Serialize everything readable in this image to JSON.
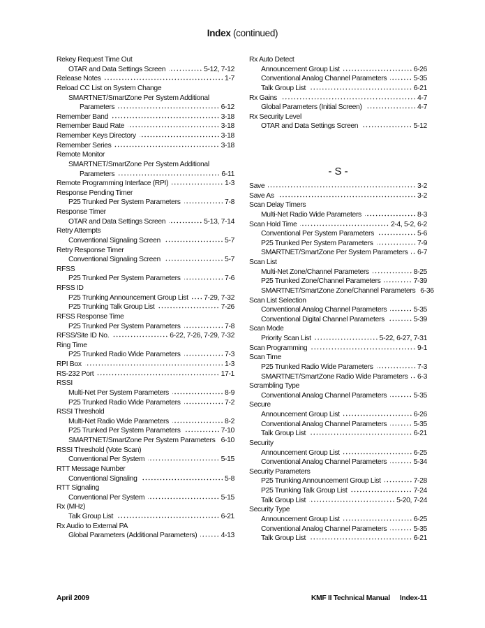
{
  "header": {
    "title": "Index",
    "suffix": "(continued)"
  },
  "left_column": [
    {
      "text": "Rekey Request Time Out",
      "pages": "",
      "level": 0
    },
    {
      "text": "OTAR and Data Settings Screen",
      "pages": "5-12, 7-12",
      "level": 1
    },
    {
      "text": "Release Notes",
      "pages": "1-7",
      "level": 0
    },
    {
      "text": "Reload CC List on System Change",
      "pages": "",
      "level": 0
    },
    {
      "text": "SMARTNET/SmartZone Per System Additional",
      "pages": "",
      "level": 1
    },
    {
      "text": "Parameters",
      "pages": "6-12",
      "level": 2
    },
    {
      "text": "Remember Band",
      "pages": "3-18",
      "level": 0
    },
    {
      "text": "Remember Baud Rate",
      "pages": "3-18",
      "level": 0
    },
    {
      "text": "Remember Keys Directory",
      "pages": "3-18",
      "level": 0
    },
    {
      "text": "Remember Series",
      "pages": "3-18",
      "level": 0
    },
    {
      "text": "Remote Monitor",
      "pages": "",
      "level": 0
    },
    {
      "text": "SMARTNET/SmartZone Per System Additional",
      "pages": "",
      "level": 1
    },
    {
      "text": "Parameters",
      "pages": "6-11",
      "level": 2
    },
    {
      "text": "Remote Programming Interface (RPI)",
      "pages": "1-3",
      "level": 0
    },
    {
      "text": "Response Pending Timer",
      "pages": "",
      "level": 0
    },
    {
      "text": "P25 Trunked Per System Parameters",
      "pages": "7-8",
      "level": 1
    },
    {
      "text": "Response Timer",
      "pages": "",
      "level": 0
    },
    {
      "text": "OTAR and Data Settings Screen",
      "pages": "5-13, 7-14",
      "level": 1
    },
    {
      "text": "Retry Attempts",
      "pages": "",
      "level": 0
    },
    {
      "text": "Conventional Signaling Screen",
      "pages": "5-7",
      "level": 1
    },
    {
      "text": "Retry Response Timer",
      "pages": "",
      "level": 0
    },
    {
      "text": "Conventional Signaling Screen",
      "pages": "5-7",
      "level": 1
    },
    {
      "text": "RFSS",
      "pages": "",
      "level": 0
    },
    {
      "text": "P25 Trunked Per System Parameters",
      "pages": "7-6",
      "level": 1
    },
    {
      "text": "RFSS ID",
      "pages": "",
      "level": 0
    },
    {
      "text": "P25 Trunking Announcement Group List",
      "pages": "7-29, 7-32",
      "level": 1
    },
    {
      "text": "P25 Trunking Talk Group List",
      "pages": "7-26",
      "level": 1
    },
    {
      "text": "RFSS Response Time",
      "pages": "",
      "level": 0
    },
    {
      "text": "P25 Trunked Per System Parameters",
      "pages": "7-8",
      "level": 1
    },
    {
      "text": "RFSS/Site ID No.",
      "pages": "6-22, 7-26, 7-29, 7-32",
      "level": 0
    },
    {
      "text": "Ring Time",
      "pages": "",
      "level": 0
    },
    {
      "text": "P25 Trunked Radio Wide Parameters",
      "pages": "7-3",
      "level": 1
    },
    {
      "text": "RPI Box",
      "pages": "1-3",
      "level": 0
    },
    {
      "text": "RS-232 Port",
      "pages": "17-1",
      "level": 0
    },
    {
      "text": "RSSI",
      "pages": "",
      "level": 0
    },
    {
      "text": "Multi-Net Per System Parameters",
      "pages": "8-9",
      "level": 1
    },
    {
      "text": "P25 Trunked Radio Wide Parameters",
      "pages": "7-2",
      "level": 1
    },
    {
      "text": "RSSI Threshold",
      "pages": "",
      "level": 0
    },
    {
      "text": "Multi-Net Radio Wide Parameters",
      "pages": "8-2",
      "level": 1
    },
    {
      "text": "P25 Trunked Per System Parameters",
      "pages": "7-10",
      "level": 1
    },
    {
      "text": "SMARTNET/SmartZone Per System Parameters",
      "pages": "6-10",
      "level": 1
    },
    {
      "text": "RSSI Threshold (Vote Scan)",
      "pages": "",
      "level": 0
    },
    {
      "text": "Conventional Per System",
      "pages": "5-15",
      "level": 1
    },
    {
      "text": "RTT Message Number",
      "pages": "",
      "level": 0
    },
    {
      "text": "Conventional Signaling",
      "pages": "5-8",
      "level": 1
    },
    {
      "text": "RTT Signaling",
      "pages": "",
      "level": 0
    },
    {
      "text": "Conventional Per System",
      "pages": "5-15",
      "level": 1
    },
    {
      "text": "Rx (MHz)",
      "pages": "",
      "level": 0
    },
    {
      "text": "Talk Group List",
      "pages": "6-21",
      "level": 1
    },
    {
      "text": "Rx Audio to External PA",
      "pages": "",
      "level": 0
    },
    {
      "text": "Global Parameters (Additional Parameters)",
      "pages": "4-13",
      "level": 1
    }
  ],
  "right_column_top": [
    {
      "text": "Rx Auto Detect",
      "pages": "",
      "level": 0
    },
    {
      "text": "Announcement Group List",
      "pages": "6-26",
      "level": 1
    },
    {
      "text": "Conventional Analog Channel Parameters",
      "pages": "5-35",
      "level": 1
    },
    {
      "text": "Talk Group List",
      "pages": "6-21",
      "level": 1
    },
    {
      "text": "Rx Gains",
      "pages": "4-7",
      "level": 0
    },
    {
      "text": "Global Parameters (Initial Screen)",
      "pages": "4-7",
      "level": 1
    },
    {
      "text": "Rx Security Level",
      "pages": "",
      "level": 0
    },
    {
      "text": "OTAR and Data Settings Screen",
      "pages": "5-12",
      "level": 1
    }
  ],
  "section_heading": "- S -",
  "right_column_s": [
    {
      "text": "Save",
      "pages": "3-2",
      "level": 0
    },
    {
      "text": "Save As",
      "pages": "3-2",
      "level": 0
    },
    {
      "text": "Scan Delay Timers",
      "pages": "",
      "level": 0
    },
    {
      "text": "Multi-Net Radio Wide Parameters",
      "pages": "8-3",
      "level": 1
    },
    {
      "text": "Scan Hold Time",
      "pages": "2-4, 5-2, 6-2",
      "level": 0
    },
    {
      "text": "Conventional Per System Parameters",
      "pages": "5-6",
      "level": 1
    },
    {
      "text": "P25 Trunked Per System Parameters",
      "pages": "7-9",
      "level": 1
    },
    {
      "text": "SMARTNET/SmartZone Per System Parameters",
      "pages": "6-7",
      "level": 1
    },
    {
      "text": "Scan List",
      "pages": "",
      "level": 0
    },
    {
      "text": "Multi-Net Zone/Channel Parameters",
      "pages": "8-25",
      "level": 1
    },
    {
      "text": "P25 Trunked Zone/Channel Parameters",
      "pages": "7-39",
      "level": 1
    },
    {
      "text": "SMARTNET/SmartZone Zone/Channel Parameters",
      "pages": "6-36",
      "level": 1
    },
    {
      "text": "Scan List Selection",
      "pages": "",
      "level": 0
    },
    {
      "text": "Conventional Analog Channel Parameters",
      "pages": "5-35",
      "level": 1
    },
    {
      "text": "Conventional Digital Channel Parameters",
      "pages": "5-39",
      "level": 1
    },
    {
      "text": "Scan Mode",
      "pages": "",
      "level": 0
    },
    {
      "text": "Priority Scan List",
      "pages": "5-22, 6-27, 7-31",
      "level": 1
    },
    {
      "text": "Scan Programming",
      "pages": "9-1",
      "level": 0
    },
    {
      "text": "Scan Time",
      "pages": "",
      "level": 0
    },
    {
      "text": "P25 Trunked Radio Wide Parameters",
      "pages": "7-3",
      "level": 1
    },
    {
      "text": "SMARTNET/SmartZone Radio Wide Parameters",
      "pages": "6-3",
      "level": 1
    },
    {
      "text": "Scrambling Type",
      "pages": "",
      "level": 0
    },
    {
      "text": "Conventional Analog Channel Parameters",
      "pages": "5-35",
      "level": 1
    },
    {
      "text": "Secure",
      "pages": "",
      "level": 0
    },
    {
      "text": "Announcement Group List",
      "pages": "6-26",
      "level": 1
    },
    {
      "text": "Conventional Analog Channel Parameters",
      "pages": "5-35",
      "level": 1
    },
    {
      "text": "Talk Group List",
      "pages": "6-21",
      "level": 1
    },
    {
      "text": "Security",
      "pages": "",
      "level": 0
    },
    {
      "text": "Announcement Group List",
      "pages": "6-25",
      "level": 1
    },
    {
      "text": "Conventional Analog Channel Parameters",
      "pages": "5-34",
      "level": 1
    },
    {
      "text": "Security Parameters",
      "pages": "",
      "level": 0
    },
    {
      "text": "P25 Trunking Announcement Group List",
      "pages": "7-28",
      "level": 1
    },
    {
      "text": "P25 Trunking Talk Group List",
      "pages": "7-24",
      "level": 1
    },
    {
      "text": "Talk Group List",
      "pages": "5-20, 7-24",
      "level": 1
    },
    {
      "text": "Security Type",
      "pages": "",
      "level": 0
    },
    {
      "text": "Announcement Group List",
      "pages": "6-25",
      "level": 1
    },
    {
      "text": "Conventional Analog Channel Parameters",
      "pages": "5-35",
      "level": 1
    },
    {
      "text": "Talk Group List",
      "pages": "6-21",
      "level": 1
    }
  ],
  "footer": {
    "date": "April 2009",
    "manual": "KMF II Technical Manual",
    "page": "Index-11"
  }
}
